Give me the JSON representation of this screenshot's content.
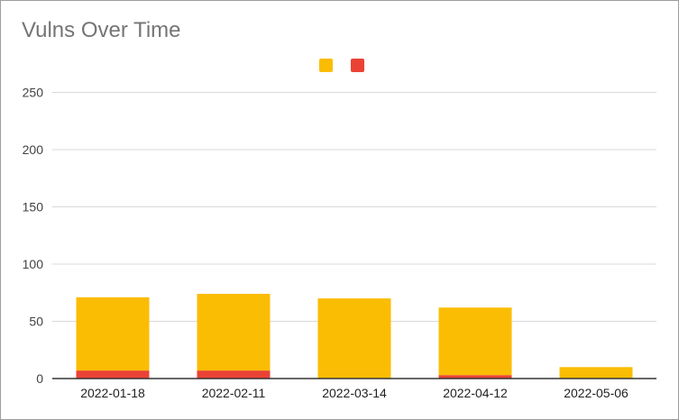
{
  "chart_data": {
    "type": "bar",
    "stacked": true,
    "title": "Vulns Over Time",
    "xlabel": "",
    "ylabel": "",
    "categories": [
      "2022-01-18",
      "2022-02-11",
      "2022-03-14",
      "2022-04-12",
      "2022-05-06"
    ],
    "series": [
      {
        "color": "#ea4335",
        "values": [
          7,
          7,
          0,
          3,
          0
        ]
      },
      {
        "color": "#fbbc04",
        "values": [
          64,
          67,
          70,
          59,
          10
        ]
      }
    ],
    "legend_order": [
      1,
      0
    ],
    "ylim": [
      0,
      275
    ],
    "yticks": [
      0,
      50,
      100,
      150,
      200,
      250
    ],
    "grid": true,
    "legend_position": "top"
  }
}
